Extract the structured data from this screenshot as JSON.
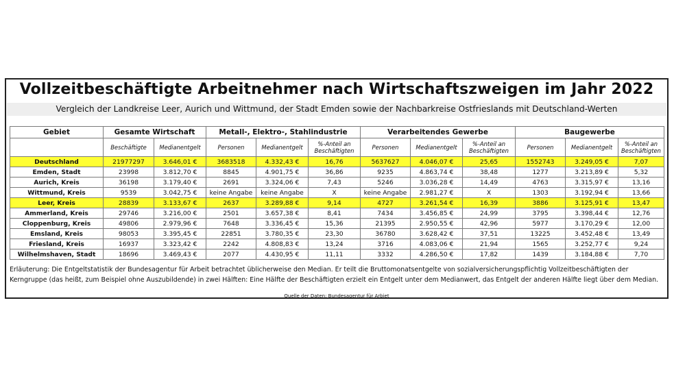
{
  "title": "Vollzeitbeschäftigte Arbeitnehmer nach Wirtschaftszweigen im Jahr 2022",
  "subtitle": "Vergleich der Landkreise Leer, Aurich und Wittmund, der  Stadt Emden sowie der Nachbarkreise Ostfrieslands mit Deutschland-Werten",
  "colors": {
    "highlight": "#ffff33",
    "subtitle_bg": "#eeeeee"
  },
  "table": {
    "region_header": "Gebiet",
    "groups": [
      "Gesamte Wirtschaft",
      "Metall-, Elektro-, Stahlindustrie",
      "Verarbeitendes Gewerbe",
      "Baugewerbe"
    ],
    "subheaders": [
      "Beschäftigte",
      "Medianentgelt",
      "Personen",
      "Medianentgelt",
      "%-Anteil an Beschäftigten",
      "Personen",
      "Medianentgelt",
      "%-Anteil an Beschäftigten",
      "Personen",
      "Medianentgelt",
      "%-Anteil an Beschäftigten"
    ],
    "rows": [
      {
        "name": "Deutschland",
        "highlight": true,
        "cells": [
          "21977297",
          "3.646,01 €",
          "3683518",
          "4.332,43 €",
          "16,76",
          "5637627",
          "4.046,07 €",
          "25,65",
          "1552743",
          "3.249,05 €",
          "7,07"
        ]
      },
      {
        "name": "Emden, Stadt",
        "highlight": false,
        "cells": [
          "23998",
          "3.812,70 €",
          "8845",
          "4.901,75 €",
          "36,86",
          "9235",
          "4.863,74 €",
          "38,48",
          "1277",
          "3.213,89 €",
          "5,32"
        ]
      },
      {
        "name": "Aurich, Kreis",
        "highlight": false,
        "cells": [
          "36198",
          "3.179,40 €",
          "2691",
          "3.324,06 €",
          "7,43",
          "5246",
          "3.036,28 €",
          "14,49",
          "4763",
          "3.315,97 €",
          "13,16"
        ]
      },
      {
        "name": "Wittmund, Kreis",
        "highlight": false,
        "cells": [
          "9539",
          "3.042,75 €",
          "keine Angabe",
          "keine Angabe",
          "X",
          "keine Angabe",
          "2.981,27 €",
          "X",
          "1303",
          "3.192,94 €",
          "13,66"
        ]
      },
      {
        "name": "Leer, Kreis",
        "highlight": true,
        "cells": [
          "28839",
          "3.133,67 €",
          "2637",
          "3.289,88 €",
          "9,14",
          "4727",
          "3.261,54 €",
          "16,39",
          "3886",
          "3.125,91 €",
          "13,47"
        ]
      },
      {
        "name": "Ammerland, Kreis",
        "highlight": false,
        "cells": [
          "29746",
          "3.216,00 €",
          "2501",
          "3.657,38 €",
          "8,41",
          "7434",
          "3.456,85 €",
          "24,99",
          "3795",
          "3.398,44 €",
          "12,76"
        ]
      },
      {
        "name": "Cloppenburg, Kreis",
        "highlight": false,
        "cells": [
          "49806",
          "2.979,96 €",
          "7648",
          "3.336,45 €",
          "15,36",
          "21395",
          "2.950,55 €",
          "42,96",
          "5977",
          "3.170,29 €",
          "12,00"
        ]
      },
      {
        "name": "Emsland, Kreis",
        "highlight": false,
        "cells": [
          "98053",
          "3.395,45 €",
          "22851",
          "3.780,35 €",
          "23,30",
          "36780",
          "3.628,42 €",
          "37,51",
          "13225",
          "3.452,48 €",
          "13,49"
        ]
      },
      {
        "name": "Friesland, Kreis",
        "highlight": false,
        "cells": [
          "16937",
          "3.323,42 €",
          "2242",
          "4.808,83 €",
          "13,24",
          "3716",
          "4.083,06 €",
          "21,94",
          "1565",
          "3.252,77 €",
          "9,24"
        ]
      },
      {
        "name": "Wilhelmshaven, Stadt",
        "highlight": false,
        "cells": [
          "18696",
          "3.469,43 €",
          "2077",
          "4.430,95 €",
          "11,11",
          "3332",
          "4.286,50 €",
          "17,82",
          "1439",
          "3.184,88 €",
          "7,70"
        ]
      }
    ]
  },
  "note": "Erläuterung: Die Entgeltstatistik der Bundesagentur für Arbeit betrachtet üblicherweise den Median. Er teilt die Bruttomonatsentgelte von sozialversicherungspflichtig Vollzeitbeschäftigten der Kerngruppe (das heißt, zum Beispiel ohne Auszubildende) in zwei Hälften: Eine Hälfte der Beschäftigten erzielt ein Entgelt unter dem Medianwert, das Entgelt der anderen Hälfte liegt über dem Median.",
  "source": "Quelle der Daten: Bundesagentur für Arbiet"
}
